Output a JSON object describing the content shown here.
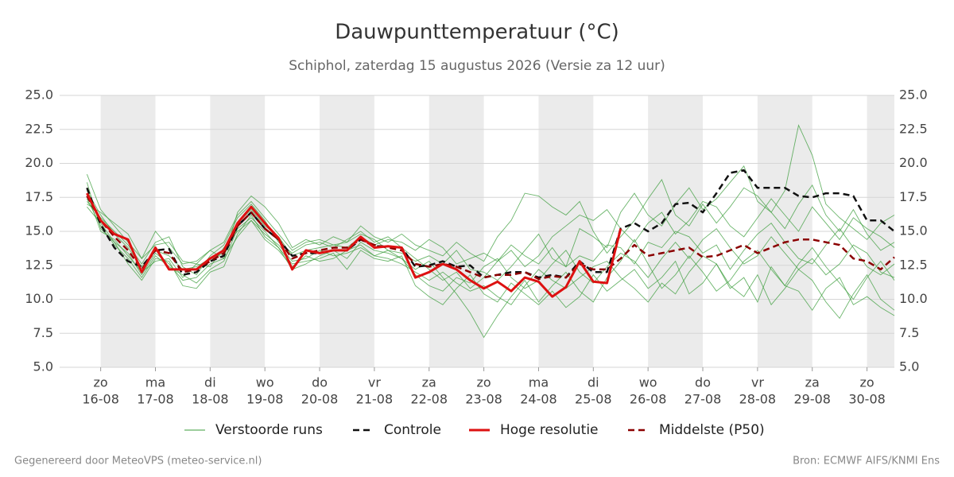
{
  "chart_data": {
    "type": "line",
    "title": "Dauwpunttemperatuur (°C)",
    "subtitle": "Schiphol, zaterdag 15 augustus 2026 (Versie za 12 uur)",
    "footer_left": "Gegenereerd door MeteoVPS (meteo-service.nl)",
    "footer_right": "Bron: ECMWF AIFS/KNMI Ens",
    "xlim": [
      -0.75,
      14.5
    ],
    "xticks": [
      {
        "value": 0,
        "label": "16-08",
        "weekday": "zo"
      },
      {
        "value": 1,
        "label": "17-08",
        "weekday": "ma"
      },
      {
        "value": 2,
        "label": "18-08",
        "weekday": "di"
      },
      {
        "value": 3,
        "label": "19-08",
        "weekday": "wo"
      },
      {
        "value": 4,
        "label": "20-08",
        "weekday": "do"
      },
      {
        "value": 5,
        "label": "21-08",
        "weekday": "vr"
      },
      {
        "value": 6,
        "label": "22-08",
        "weekday": "za"
      },
      {
        "value": 7,
        "label": "23-08",
        "weekday": "zo"
      },
      {
        "value": 8,
        "label": "24-08",
        "weekday": "ma"
      },
      {
        "value": 9,
        "label": "25-08",
        "weekday": "di"
      },
      {
        "value": 10,
        "label": "26-08",
        "weekday": "wo"
      },
      {
        "value": 11,
        "label": "27-08",
        "weekday": "do"
      },
      {
        "value": 12,
        "label": "28-08",
        "weekday": "vr"
      },
      {
        "value": 13,
        "label": "29-08",
        "weekday": "za"
      },
      {
        "value": 14,
        "label": "30-08",
        "weekday": "zo"
      }
    ],
    "ylim": [
      5,
      25
    ],
    "yticks": [
      {
        "value": 5,
        "label": "5.0"
      },
      {
        "value": 7.5,
        "label": "7.5"
      },
      {
        "value": 10,
        "label": "10.0"
      },
      {
        "value": 12.5,
        "label": "12.5"
      },
      {
        "value": 15,
        "label": "15.0"
      },
      {
        "value": 17.5,
        "label": "17.5"
      },
      {
        "value": 20,
        "label": "20.0"
      },
      {
        "value": 22.5,
        "label": "22.5"
      },
      {
        "value": 25,
        "label": "25.0"
      }
    ],
    "grid": true,
    "x": [
      -0.25,
      0,
      0.25,
      0.5,
      0.75,
      1,
      1.25,
      1.5,
      1.75,
      2,
      2.25,
      2.5,
      2.75,
      3,
      3.25,
      3.5,
      3.75,
      4,
      4.25,
      4.5,
      4.75,
      5,
      5.25,
      5.5,
      5.75,
      6,
      6.25,
      6.5,
      6.75,
      7,
      7.25,
      7.5,
      7.75,
      8,
      8.25,
      8.5,
      8.75,
      9,
      9.25,
      9.5,
      9.75,
      10,
      10.25,
      10.5,
      10.75,
      11,
      11.25,
      11.5,
      11.75,
      12,
      12.25,
      12.5,
      12.75,
      13,
      13.25,
      13.5,
      13.75,
      14,
      14.25,
      14.5
    ],
    "ensemble": {
      "name": "Verstoorde runs",
      "color": "#3a9c3a",
      "members": [
        [
          17.2,
          16.0,
          15.0,
          14.0,
          12.6,
          14.2,
          14.6,
          12.4,
          11.8,
          13.2,
          14.0,
          16.0,
          17.0,
          15.8,
          14.2,
          13.4,
          14.0,
          14.2,
          13.8,
          14.4,
          15.0,
          14.2,
          14.6,
          13.8,
          13.0,
          12.2,
          11.4,
          12.0,
          10.8,
          11.6,
          12.8,
          14.0,
          13.2,
          12.6,
          13.8,
          12.4,
          15.2,
          14.6,
          13.8,
          16.4,
          17.8,
          16.2,
          15.4,
          17.0,
          18.2,
          16.6,
          17.4,
          18.6,
          19.8,
          17.2,
          16.4,
          18.0,
          22.8,
          20.6,
          17.0,
          16.0,
          15.2,
          14.4,
          15.6,
          16.2
        ],
        [
          18.6,
          15.2,
          14.2,
          12.6,
          11.4,
          13.0,
          12.8,
          11.0,
          10.8,
          12.0,
          12.4,
          14.8,
          16.2,
          14.6,
          13.8,
          12.6,
          12.8,
          13.0,
          13.4,
          12.2,
          13.6,
          13.0,
          12.8,
          13.2,
          11.0,
          10.2,
          9.6,
          10.8,
          11.8,
          10.4,
          9.8,
          11.2,
          10.4,
          9.6,
          10.6,
          9.4,
          10.2,
          11.8,
          10.6,
          11.4,
          12.2,
          10.8,
          11.6,
          12.8,
          10.4,
          11.2,
          12.6,
          10.8,
          11.6,
          9.8,
          12.4,
          11.0,
          10.6,
          9.2,
          10.8,
          11.6,
          9.6,
          10.2,
          9.4,
          8.8
        ],
        [
          17.0,
          16.4,
          15.6,
          14.8,
          13.0,
          15.0,
          13.8,
          12.6,
          12.8,
          13.6,
          13.0,
          16.4,
          17.6,
          16.8,
          15.6,
          13.8,
          14.4,
          14.0,
          14.6,
          14.2,
          15.4,
          14.6,
          14.2,
          14.8,
          14.0,
          13.6,
          13.2,
          14.2,
          13.4,
          12.8,
          14.6,
          15.8,
          17.8,
          17.6,
          16.8,
          16.2,
          17.2,
          15.0,
          13.4,
          14.6,
          15.8,
          17.4,
          18.8,
          16.2,
          15.4,
          17.0,
          15.6,
          16.8,
          18.2,
          17.6,
          16.4,
          15.2,
          17.0,
          18.4,
          16.2,
          15.0,
          16.6,
          14.8,
          13.6,
          14.2
        ],
        [
          17.8,
          15.0,
          14.4,
          13.2,
          12.0,
          12.8,
          13.0,
          11.6,
          12.6,
          12.4,
          13.8,
          15.0,
          15.8,
          14.8,
          14.0,
          12.8,
          13.0,
          13.6,
          13.2,
          13.4,
          13.8,
          13.2,
          13.6,
          13.0,
          12.2,
          12.8,
          11.6,
          10.4,
          9.0,
          7.2,
          8.8,
          10.2,
          11.4,
          9.8,
          11.0,
          12.0,
          10.6,
          9.8,
          11.6,
          12.8,
          14.4,
          12.6,
          10.8,
          11.8,
          13.2,
          12.0,
          10.6,
          11.4,
          12.8,
          13.6,
          12.2,
          11.0,
          12.6,
          13.8,
          12.4,
          11.2,
          10.0,
          11.6,
          12.8,
          11.4
        ],
        [
          18.0,
          16.2,
          14.8,
          13.8,
          12.4,
          13.6,
          13.2,
          12.2,
          12.4,
          13.0,
          13.4,
          15.6,
          16.6,
          15.4,
          14.6,
          13.2,
          13.6,
          13.8,
          14.0,
          14.2,
          14.8,
          14.4,
          13.6,
          13.4,
          12.8,
          13.2,
          12.6,
          13.6,
          12.2,
          12.0,
          11.4,
          12.4,
          13.6,
          14.8,
          13.0,
          12.4,
          13.2,
          12.8,
          14.0,
          13.8,
          12.6,
          14.2,
          13.8,
          15.0,
          14.6,
          13.4,
          14.0,
          12.2,
          13.6,
          14.8,
          15.6,
          14.2,
          13.0,
          12.6,
          14.0,
          15.2,
          13.8,
          12.4,
          11.8,
          12.6
        ],
        [
          16.8,
          15.6,
          14.2,
          13.4,
          11.8,
          13.4,
          12.6,
          11.4,
          11.6,
          12.6,
          13.0,
          14.6,
          15.8,
          14.4,
          13.6,
          12.4,
          13.2,
          12.8,
          13.0,
          13.6,
          14.0,
          13.2,
          13.0,
          12.6,
          12.0,
          11.4,
          12.0,
          11.2,
          10.6,
          11.0,
          10.2,
          9.6,
          11.0,
          12.2,
          11.4,
          10.8,
          11.6,
          12.4,
          12.8,
          11.6,
          10.8,
          9.8,
          11.2,
          10.4,
          12.0,
          13.2,
          12.6,
          11.0,
          10.2,
          11.8,
          9.6,
          10.8,
          12.2,
          11.4,
          9.8,
          8.6,
          10.4,
          11.8,
          10.0,
          9.2
        ],
        [
          19.2,
          16.6,
          15.4,
          14.2,
          13.0,
          14.0,
          14.2,
          12.8,
          12.6,
          13.6,
          14.2,
          16.2,
          17.2,
          16.0,
          14.8,
          13.6,
          14.2,
          14.4,
          14.0,
          13.8,
          14.6,
          14.0,
          14.4,
          14.2,
          13.6,
          14.4,
          13.8,
          12.6,
          13.0,
          13.4,
          12.8,
          13.6,
          12.4,
          13.2,
          14.6,
          15.4,
          16.2,
          15.8,
          16.6,
          15.2,
          14.2,
          15.6,
          16.4,
          14.8,
          15.8,
          17.2,
          16.8,
          15.4,
          14.6,
          16.0,
          17.4,
          16.2,
          15.0,
          16.8,
          15.6,
          14.4,
          16.0,
          15.2,
          14.6,
          13.8
        ],
        [
          17.4,
          15.4,
          14.0,
          13.0,
          11.6,
          13.2,
          12.4,
          11.8,
          11.2,
          12.2,
          12.8,
          15.2,
          16.0,
          15.0,
          13.8,
          12.2,
          12.6,
          13.2,
          13.6,
          13.0,
          14.2,
          13.6,
          13.4,
          13.0,
          11.8,
          11.0,
          10.6,
          11.6,
          11.2,
          12.4,
          13.0,
          11.6,
          10.8,
          11.4,
          12.6,
          13.6,
          12.0,
          11.2,
          12.4,
          13.4,
          12.8,
          11.6,
          13.0,
          14.2,
          13.0,
          14.4,
          15.2,
          13.8,
          12.6,
          13.2,
          14.6,
          13.4,
          12.2,
          13.0,
          11.8,
          12.6,
          14.0,
          13.4,
          12.0,
          11.6
        ]
      ]
    },
    "series": [
      {
        "name": "Controle",
        "color": "#111111",
        "style": "dashed",
        "values": [
          18.2,
          15.5,
          13.8,
          12.8,
          12.4,
          13.6,
          13.7,
          11.8,
          12.0,
          12.8,
          13.2,
          15.4,
          16.4,
          15.2,
          14.4,
          13.2,
          13.4,
          13.4,
          13.6,
          13.6,
          14.4,
          13.9,
          13.9,
          13.8,
          12.4,
          12.5,
          12.8,
          12.4,
          12.5,
          11.6,
          11.8,
          12.0,
          12.0,
          11.6,
          11.8,
          11.6,
          12.8,
          12.0,
          12.0,
          15.2,
          15.6,
          15.0,
          15.6,
          17.0,
          17.1,
          16.4,
          17.8,
          19.3,
          19.5,
          18.2,
          18.2,
          18.2,
          17.6,
          17.5,
          17.8,
          17.8,
          17.6,
          15.8,
          15.8,
          15.0
        ]
      },
      {
        "name": "Hoge resolutie",
        "color": "#dd1111",
        "style": "solid",
        "values": [
          17.8,
          15.8,
          14.8,
          14.4,
          12.0,
          13.8,
          12.2,
          12.2,
          12.2,
          13.0,
          13.6,
          15.6,
          16.8,
          15.6,
          14.5,
          12.2,
          13.6,
          13.4,
          13.6,
          13.6,
          14.6,
          13.8,
          13.9,
          13.8,
          11.6,
          12.0,
          12.6,
          12.2,
          11.4,
          10.8,
          11.3,
          10.6,
          11.6,
          11.3,
          10.2,
          10.9,
          12.8,
          11.3,
          11.2,
          15.2,
          null,
          null,
          null,
          null,
          null,
          null,
          null,
          null,
          null,
          null,
          null,
          null,
          null,
          null,
          null,
          null,
          null,
          null,
          null,
          null
        ]
      },
      {
        "name": "Middelste (P50)",
        "color": "#8b0000",
        "style": "dashed",
        "values": [
          17.6,
          15.8,
          14.6,
          13.6,
          12.2,
          13.6,
          13.4,
          12.0,
          12.2,
          12.8,
          13.4,
          15.4,
          16.4,
          15.2,
          14.4,
          13.0,
          13.4,
          13.6,
          13.8,
          13.8,
          14.4,
          14.0,
          13.8,
          13.6,
          12.6,
          12.4,
          12.6,
          12.4,
          12.0,
          11.6,
          11.8,
          11.8,
          12.0,
          11.5,
          11.7,
          11.6,
          12.6,
          12.2,
          12.2,
          13.0,
          14.0,
          13.2,
          13.4,
          13.6,
          13.8,
          13.1,
          13.2,
          13.6,
          14.0,
          13.4,
          13.8,
          14.2,
          14.4,
          14.4,
          14.2,
          14.0,
          13.0,
          12.8,
          12.2,
          13.1
        ]
      }
    ]
  }
}
